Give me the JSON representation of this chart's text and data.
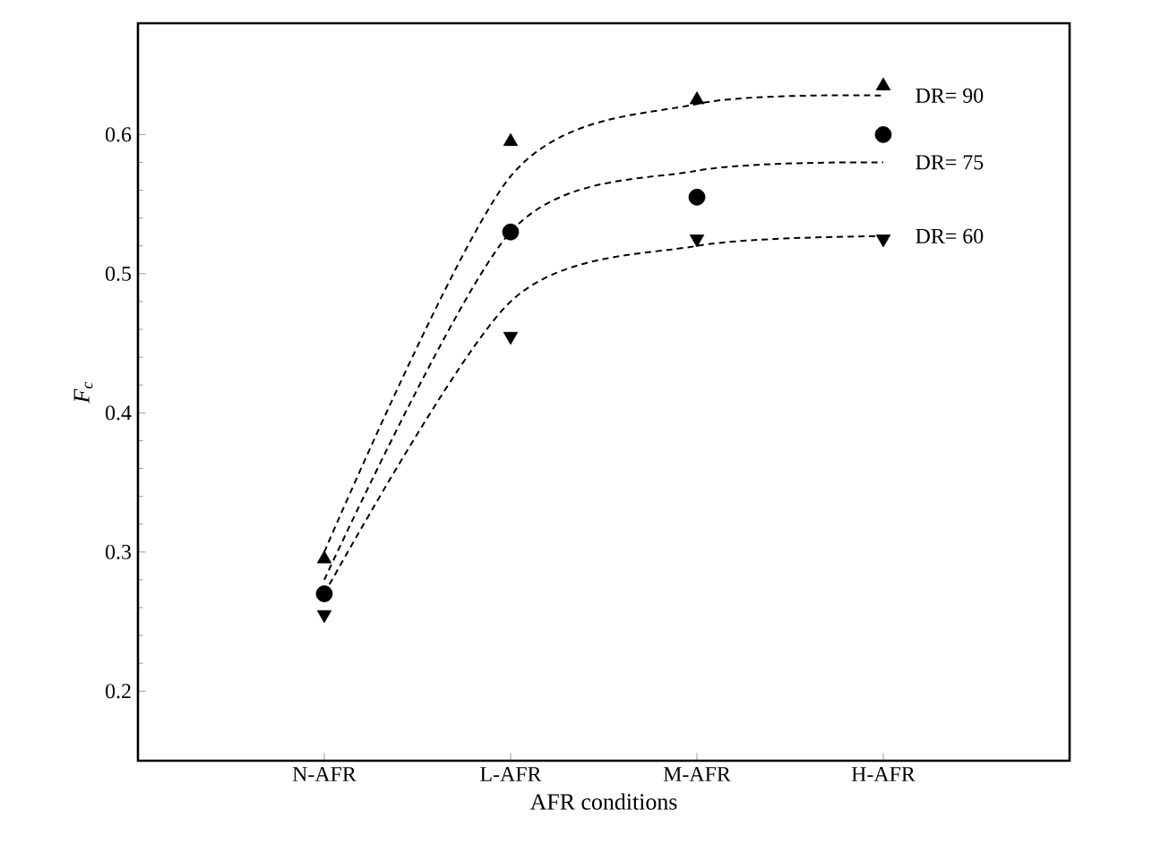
{
  "chart_data": {
    "type": "scatter",
    "xlabel": "AFR conditions",
    "ylabel": "F$_{c}$",
    "categories": [
      "N-AFR",
      "L-AFR",
      "M-AFR",
      "H-AFR"
    ],
    "ylim": [
      0.15,
      0.68
    ],
    "yticks": [
      0.2,
      0.3,
      0.4,
      0.5,
      0.6
    ],
    "grid": false,
    "series": [
      {
        "marker": "triangle",
        "color": "#000000",
        "values": [
          0.295,
          0.595,
          0.625,
          0.635
        ]
      },
      {
        "marker": "circle",
        "color": "#000000",
        "values": [
          0.27,
          0.53,
          0.555,
          0.6
        ]
      },
      {
        "marker": "triangle down",
        "color": "#000000",
        "values": [
          0.255,
          0.455,
          0.525,
          0.525
        ]
      },
      {
        "type": "line",
        "name": "DR= 90",
        "line_style": "dashed",
        "color": "#000000",
        "values": [
          0.3,
          0.57,
          0.622,
          0.628
        ]
      },
      {
        "type": "line",
        "name": "DR= 75",
        "line_style": "dashed",
        "color": "#000000",
        "values": [
          0.28,
          0.53,
          0.574,
          0.58
        ]
      },
      {
        "type": "line",
        "name": "DR= 60",
        "line_style": "dashed",
        "color": "#000000",
        "values": [
          0.27,
          0.48,
          0.52,
          0.527
        ]
      }
    ]
  }
}
